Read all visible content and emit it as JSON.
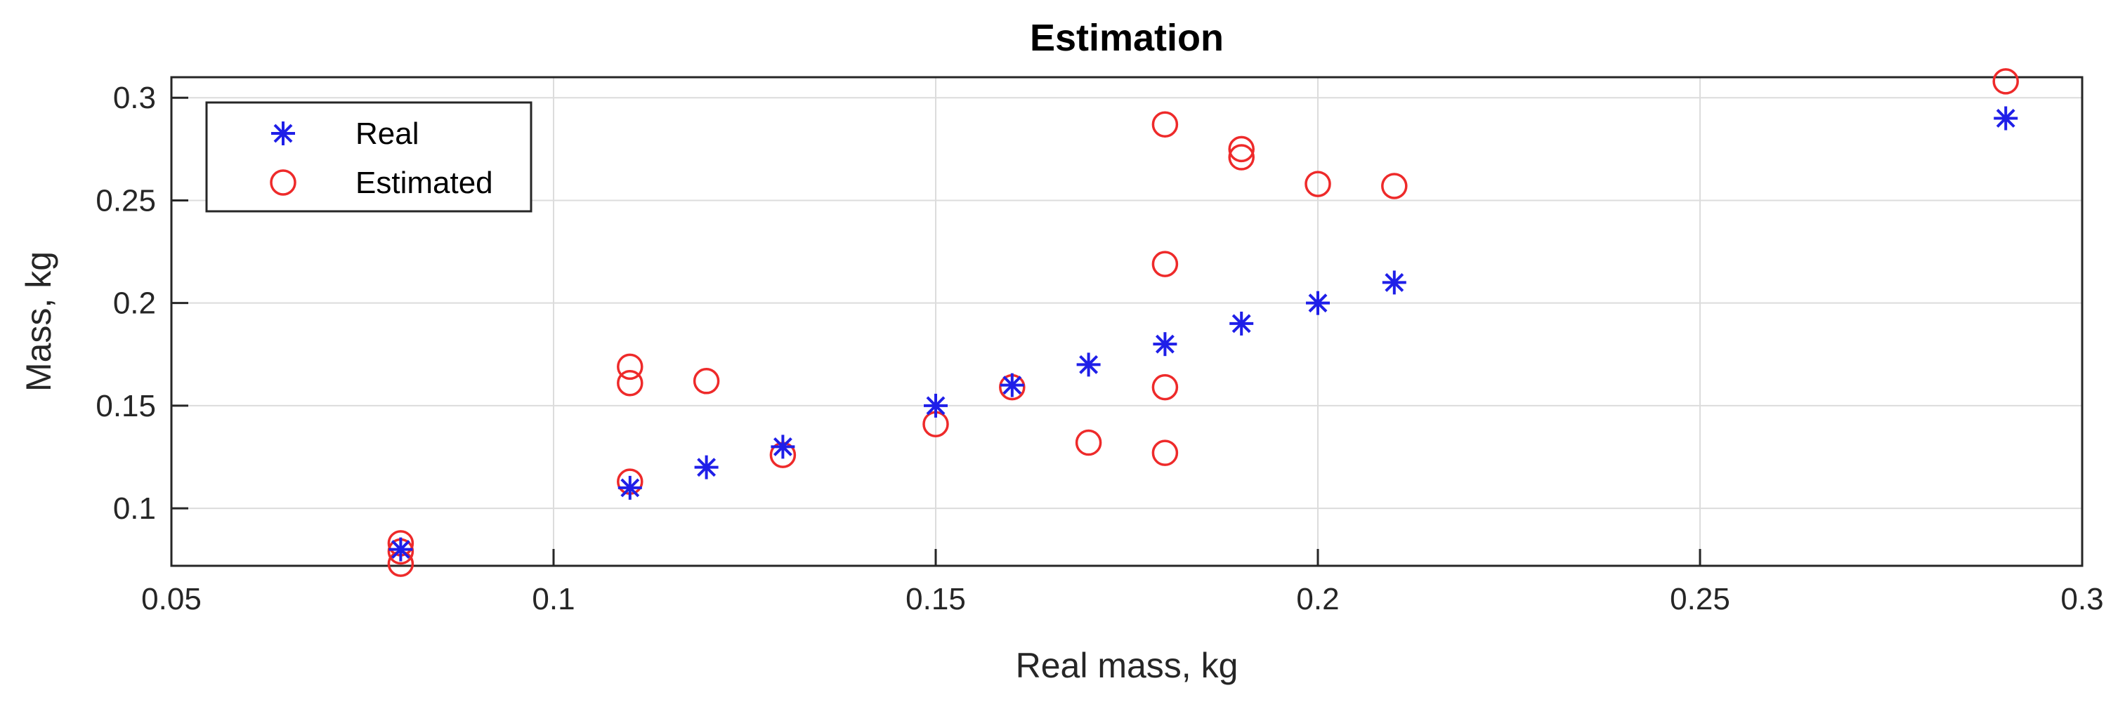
{
  "chart_data": {
    "type": "scatter",
    "title": "Estimation",
    "xlabel": "Real mass, kg",
    "ylabel": "Mass, kg",
    "xlim": [
      0.05,
      0.3
    ],
    "ylim": [
      0.072,
      0.31
    ],
    "xticks": [
      0.05,
      0.1,
      0.15,
      0.2,
      0.25,
      0.3
    ],
    "xtick_labels": [
      "0.05",
      "0.1",
      "0.15",
      "0.2",
      "0.25",
      "0.3"
    ],
    "yticks": [
      0.1,
      0.15,
      0.2,
      0.25,
      0.3
    ],
    "ytick_labels": [
      "0.1",
      "0.15",
      "0.2",
      "0.25",
      "0.3"
    ],
    "grid": true,
    "legend_position": "top-left",
    "series": [
      {
        "name": "Real",
        "marker": "asterisk",
        "color": "#1f1fe8",
        "x": [
          0.08,
          0.11,
          0.12,
          0.13,
          0.15,
          0.16,
          0.17,
          0.18,
          0.19,
          0.2,
          0.21,
          0.29
        ],
        "y": [
          0.08,
          0.11,
          0.12,
          0.13,
          0.15,
          0.16,
          0.17,
          0.18,
          0.19,
          0.2,
          0.21,
          0.29
        ]
      },
      {
        "name": "Estimated",
        "marker": "circle",
        "color": "#ee2a2a",
        "x": [
          0.08,
          0.08,
          0.08,
          0.11,
          0.11,
          0.11,
          0.12,
          0.13,
          0.15,
          0.16,
          0.17,
          0.18,
          0.18,
          0.18,
          0.18,
          0.19,
          0.19,
          0.2,
          0.21,
          0.29
        ],
        "y": [
          0.083,
          0.079,
          0.073,
          0.113,
          0.161,
          0.169,
          0.162,
          0.126,
          0.141,
          0.159,
          0.132,
          0.287,
          0.219,
          0.159,
          0.127,
          0.275,
          0.271,
          0.258,
          0.257,
          0.308
        ]
      }
    ]
  }
}
